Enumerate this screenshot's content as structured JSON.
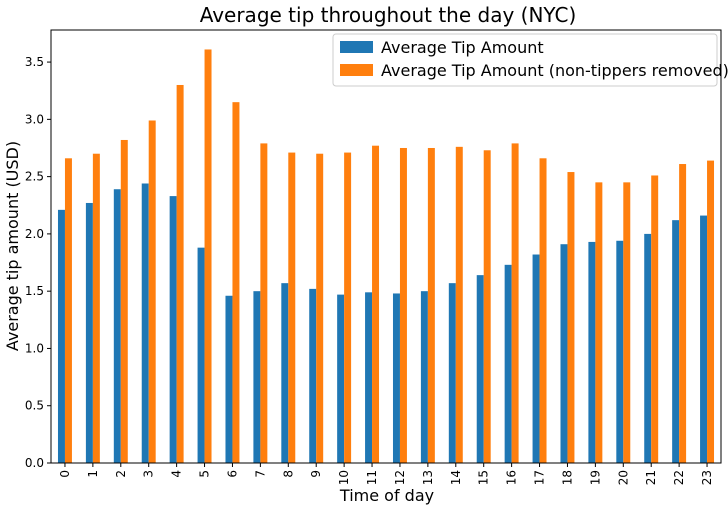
{
  "chart_data": {
    "type": "bar",
    "title": "Average tip throughout the day (NYC)",
    "xlabel": "Time of day",
    "ylabel": "Average tip amount (USD)",
    "ylim": [
      0,
      3.78
    ],
    "yticks": [
      "0.0",
      "0.5",
      "1.0",
      "1.5",
      "2.0",
      "2.5",
      "3.0",
      "3.5"
    ],
    "categories": [
      "0",
      "1",
      "2",
      "3",
      "4",
      "5",
      "6",
      "7",
      "8",
      "9",
      "10",
      "11",
      "12",
      "13",
      "14",
      "15",
      "16",
      "17",
      "18",
      "19",
      "20",
      "21",
      "22",
      "23"
    ],
    "series": [
      {
        "name": "Average Tip Amount",
        "color": "#1f77b4",
        "values": [
          2.21,
          2.27,
          2.39,
          2.44,
          2.33,
          1.88,
          1.46,
          1.5,
          1.57,
          1.52,
          1.47,
          1.49,
          1.48,
          1.5,
          1.57,
          1.64,
          1.73,
          1.82,
          1.91,
          1.93,
          1.94,
          2.0,
          2.12,
          2.16
        ]
      },
      {
        "name": "Average Tip Amount (non-tippers removed)",
        "color": "#ff7f0e",
        "values": [
          2.66,
          2.7,
          2.82,
          2.99,
          3.3,
          3.61,
          3.15,
          2.79,
          2.71,
          2.7,
          2.71,
          2.77,
          2.75,
          2.75,
          2.76,
          2.73,
          2.79,
          2.66,
          2.54,
          2.45,
          2.45,
          2.51,
          2.61,
          2.64
        ]
      }
    ],
    "grid": false,
    "legend": "top-right"
  }
}
